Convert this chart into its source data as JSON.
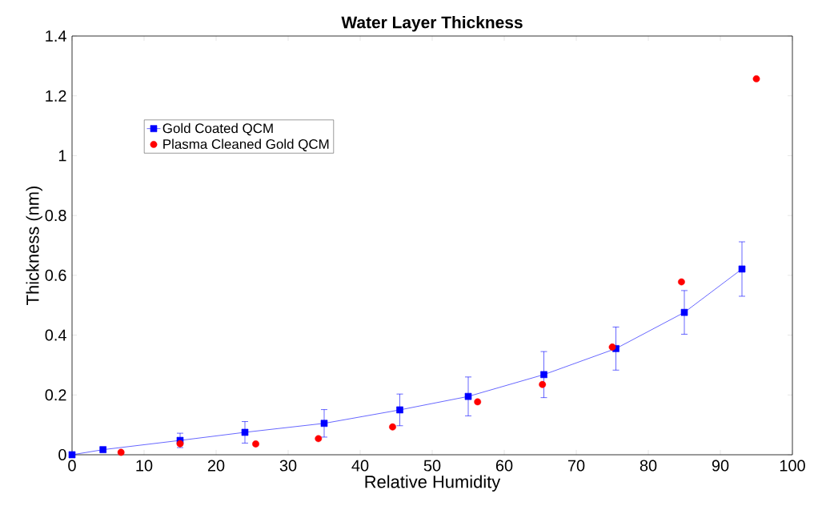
{
  "chart_data": {
    "type": "scatter",
    "title": "Water Layer Thickness",
    "xlabel": "Relative Humidity",
    "ylabel": "Thickness (nm)",
    "xlim": [
      0,
      100
    ],
    "xticks": [
      0,
      10,
      20,
      30,
      40,
      50,
      60,
      70,
      80,
      90,
      100
    ],
    "ylim": [
      0,
      1.4
    ],
    "yticks": [
      0,
      0.2,
      0.4,
      0.6,
      0.8,
      1,
      1.2,
      1.4
    ],
    "grid": false,
    "legend": "top left",
    "series": [
      {
        "name": "Gold Coated QCM",
        "type": "line",
        "marker": "square",
        "line_style": "solid",
        "color": "#0000ff",
        "x": [
          0,
          4.3,
          15,
          24,
          35,
          45.5,
          55,
          65.5,
          75.5,
          85,
          93
        ],
        "values": [
          0,
          0.017,
          0.048,
          0.075,
          0.105,
          0.15,
          0.195,
          0.268,
          0.355,
          0.476,
          0.621
        ],
        "errors": [
          null,
          0.006,
          0.024,
          0.036,
          0.046,
          0.053,
          0.065,
          0.077,
          0.072,
          0.073,
          0.091
        ]
      },
      {
        "name": "Plasma Cleaned Gold QCM",
        "marker": "circle",
        "color": "#ff0000",
        "x": [
          6.8,
          15,
          25.5,
          34.2,
          44.5,
          56.3,
          65.3,
          75,
          84.6,
          95
        ],
        "values": [
          0.008,
          0.037,
          0.036,
          0.054,
          0.093,
          0.177,
          0.235,
          0.36,
          0.578,
          1.257
        ]
      }
    ]
  }
}
